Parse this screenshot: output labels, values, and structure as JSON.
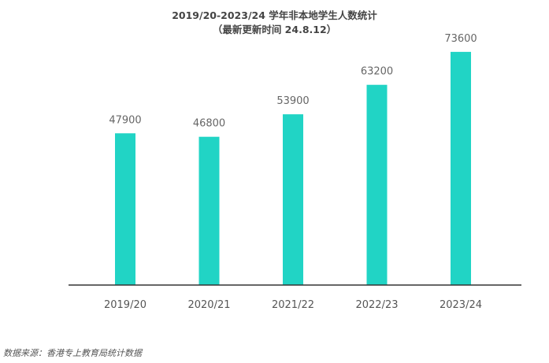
{
  "chart_data": {
    "type": "bar",
    "title": "2019/20-2023/24 学年非本地学生人数统计",
    "subtitle": "（最新更新时间 24.8.12）",
    "categories": [
      "2019/20",
      "2020/21",
      "2021/22",
      "2022/23",
      "2023/24"
    ],
    "values": [
      47900,
      46800,
      53900,
      63200,
      73600
    ],
    "ylim": [
      0,
      85000
    ],
    "grid": false,
    "bar_color": "#21d4c5",
    "xlabel": "",
    "ylabel": ""
  },
  "source_note": "数据来源：香港专上教育局统计数据"
}
